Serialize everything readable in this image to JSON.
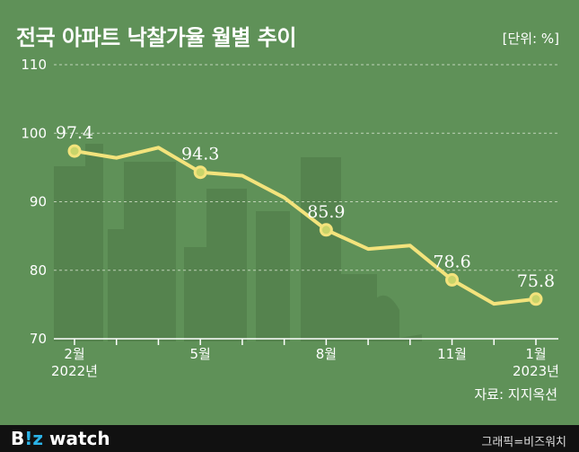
{
  "title": "전국 아파트 낙찰가율 월별 추이",
  "unit": "[단위: %]",
  "source": "자료: 지지옥션",
  "footer": {
    "logo_b": "B",
    "logo_z": "!z",
    "logo_rest": " watch",
    "credit": "그래픽=비즈워치"
  },
  "colors": {
    "background": "#5f9158",
    "line": "#f3e37c",
    "marker_fill": "#c8d46a",
    "text": "#ffffff",
    "footer": "#111111"
  },
  "chart_data": {
    "type": "line",
    "title": "전국 아파트 낙찰가율 월별 추이",
    "ylabel": "",
    "xlabel": "",
    "ylim": [
      70,
      110
    ],
    "yticks": [
      70,
      80,
      90,
      100,
      110
    ],
    "grid": true,
    "x": [
      "2022-02",
      "2022-03",
      "2022-04",
      "2022-05",
      "2022-06",
      "2022-07",
      "2022-08",
      "2022-09",
      "2022-10",
      "2022-11",
      "2022-12",
      "2023-01"
    ],
    "values": [
      97.4,
      96.4,
      97.9,
      94.3,
      93.8,
      90.6,
      85.9,
      83.1,
      83.6,
      78.6,
      75.1,
      75.8
    ],
    "xtick_labels": [
      {
        "index": 0,
        "month": "2월",
        "year": "2022년"
      },
      {
        "index": 3,
        "month": "5월",
        "year": ""
      },
      {
        "index": 6,
        "month": "8월",
        "year": ""
      },
      {
        "index": 9,
        "month": "11월",
        "year": ""
      },
      {
        "index": 11,
        "month": "1월",
        "year": "2023년"
      }
    ],
    "data_labels": [
      {
        "index": 0,
        "text": "97.4"
      },
      {
        "index": 3,
        "text": "94.3"
      },
      {
        "index": 6,
        "text": "85.9"
      },
      {
        "index": 9,
        "text": "78.6"
      },
      {
        "index": 11,
        "text": "75.8"
      }
    ]
  }
}
